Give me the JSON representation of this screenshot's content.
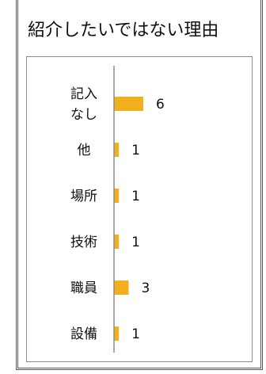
{
  "chart_data": {
    "type": "bar",
    "orientation": "horizontal",
    "title": "紹介したいではない理由",
    "categories": [
      "記入なし",
      "他",
      "場所",
      "技術",
      "職員",
      "設備"
    ],
    "category_lines": [
      [
        "記入",
        "なし"
      ],
      [
        "他"
      ],
      [
        "場所"
      ],
      [
        "技術"
      ],
      [
        "職員"
      ],
      [
        "設備"
      ]
    ],
    "values": [
      6,
      1,
      1,
      1,
      3,
      1
    ],
    "xlim": [
      0,
      6
    ],
    "grid": false,
    "legend": "none",
    "data_labels": true,
    "bar_color": "#f2b01e",
    "axis_color": "#8c8c8c"
  }
}
